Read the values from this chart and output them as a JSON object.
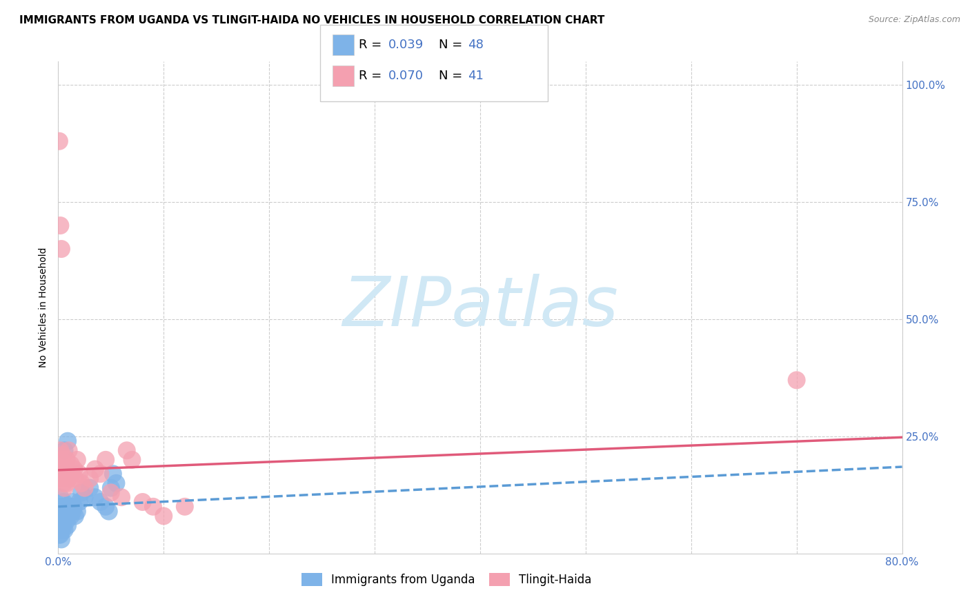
{
  "title": "IMMIGRANTS FROM UGANDA VS TLINGIT-HAIDA NO VEHICLES IN HOUSEHOLD CORRELATION CHART",
  "source": "Source: ZipAtlas.com",
  "xlabel_blue": "Immigrants from Uganda",
  "xlabel_pink": "Tlingit-Haida",
  "ylabel": "No Vehicles in Household",
  "xlim": [
    0.0,
    0.8
  ],
  "ylim": [
    0.0,
    1.05
  ],
  "xticks": [
    0.0,
    0.1,
    0.2,
    0.3,
    0.4,
    0.5,
    0.6,
    0.7,
    0.8
  ],
  "xticklabels": [
    "0.0%",
    "",
    "",
    "",
    "",
    "",
    "",
    "",
    "80.0%"
  ],
  "yticks_right": [
    0.0,
    0.25,
    0.5,
    0.75,
    1.0
  ],
  "yticklabels_right": [
    "",
    "25.0%",
    "50.0%",
    "75.0%",
    "100.0%"
  ],
  "legend_R_blue": "0.039",
  "legend_N_blue": "48",
  "legend_R_pink": "0.070",
  "legend_N_pink": "41",
  "color_blue": "#7EB3E8",
  "color_pink": "#F4A0B0",
  "color_blue_line": "#5B9BD5",
  "color_pink_line": "#E05A7A",
  "color_blue_text": "#4472C4",
  "watermark": "ZIPatlas",
  "watermark_color": "#D0E8F5",
  "grid_color": "#CCCCCC",
  "background_color": "#FFFFFF",
  "title_fontsize": 11,
  "axis_label_fontsize": 10,
  "tick_fontsize": 11,
  "blue_x": [
    0.001,
    0.001,
    0.001,
    0.001,
    0.001,
    0.002,
    0.002,
    0.002,
    0.002,
    0.002,
    0.003,
    0.003,
    0.003,
    0.003,
    0.004,
    0.004,
    0.004,
    0.005,
    0.005,
    0.005,
    0.006,
    0.006,
    0.006,
    0.007,
    0.007,
    0.008,
    0.008,
    0.009,
    0.009,
    0.01,
    0.011,
    0.012,
    0.013,
    0.014,
    0.015,
    0.016,
    0.018,
    0.02,
    0.022,
    0.025,
    0.03,
    0.035,
    0.04,
    0.045,
    0.048,
    0.05,
    0.052,
    0.055
  ],
  "blue_y": [
    0.04,
    0.05,
    0.06,
    0.08,
    0.1,
    0.04,
    0.05,
    0.07,
    0.09,
    0.12,
    0.03,
    0.06,
    0.08,
    0.1,
    0.05,
    0.07,
    0.09,
    0.06,
    0.08,
    0.11,
    0.05,
    0.07,
    0.22,
    0.08,
    0.1,
    0.07,
    0.09,
    0.06,
    0.24,
    0.09,
    0.1,
    0.08,
    0.11,
    0.09,
    0.1,
    0.08,
    0.09,
    0.11,
    0.13,
    0.12,
    0.14,
    0.12,
    0.11,
    0.1,
    0.09,
    0.14,
    0.17,
    0.15
  ],
  "pink_x": [
    0.001,
    0.001,
    0.002,
    0.002,
    0.002,
    0.003,
    0.003,
    0.003,
    0.004,
    0.004,
    0.005,
    0.005,
    0.006,
    0.006,
    0.007,
    0.008,
    0.008,
    0.009,
    0.01,
    0.01,
    0.012,
    0.013,
    0.015,
    0.016,
    0.018,
    0.02,
    0.022,
    0.025,
    0.03,
    0.035,
    0.04,
    0.045,
    0.05,
    0.06,
    0.065,
    0.07,
    0.08,
    0.09,
    0.1,
    0.12,
    0.7
  ],
  "pink_y": [
    0.88,
    0.2,
    0.7,
    0.22,
    0.18,
    0.65,
    0.2,
    0.17,
    0.21,
    0.16,
    0.19,
    0.15,
    0.18,
    0.14,
    0.17,
    0.2,
    0.15,
    0.18,
    0.22,
    0.16,
    0.19,
    0.17,
    0.18,
    0.16,
    0.2,
    0.17,
    0.15,
    0.14,
    0.16,
    0.18,
    0.17,
    0.2,
    0.13,
    0.12,
    0.22,
    0.2,
    0.11,
    0.1,
    0.08,
    0.1,
    0.37
  ],
  "blue_trend_x0": 0.0,
  "blue_trend_y0": 0.1,
  "blue_trend_x1": 0.8,
  "blue_trend_y1": 0.185,
  "pink_trend_x0": 0.0,
  "pink_trend_y0": 0.178,
  "pink_trend_x1": 0.8,
  "pink_trend_y1": 0.248
}
